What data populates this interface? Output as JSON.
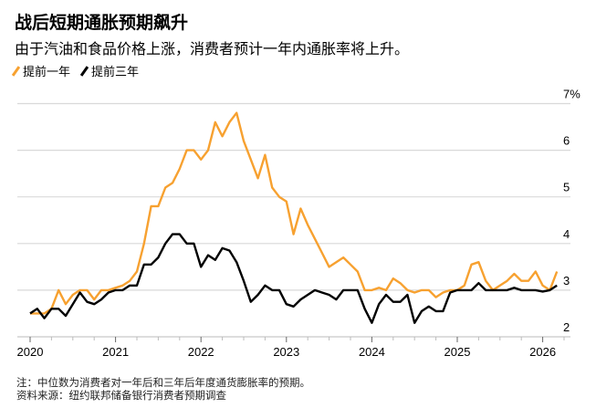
{
  "title": "战后短期通胀预期飙升",
  "subtitle": "由于汽油和食品价格上涨，消费者预计一年内通胀率将上升。",
  "notes": {
    "note": "注：中位数为消费者对一年后和三年后年度通货膨胀率的预期。",
    "source": "资料来源：纽约联邦储备银行消费者预期调查"
  },
  "colors": {
    "one_year": "#F7A130",
    "three_year": "#000000",
    "grid": "#d9d9d9"
  },
  "chart_data": {
    "type": "line",
    "title": "战后短期通胀预期飙升",
    "xlabel": "",
    "ylabel": "",
    "x_start": "2020-01",
    "x_frequency": "monthly",
    "x_ticks": [
      "2020",
      "2021",
      "2022",
      "2023",
      "2024",
      "2025",
      "2026"
    ],
    "y_ticks": [
      "2",
      "3",
      "4",
      "5",
      "6",
      "7%"
    ],
    "ylim": [
      2,
      7
    ],
    "grid": true,
    "legend_position": "top-left",
    "series": [
      {
        "name": "提前一年",
        "color": "#F7A130",
        "values": [
          2.5,
          2.5,
          2.5,
          2.6,
          3.0,
          2.7,
          2.9,
          3.0,
          3.0,
          2.8,
          3.0,
          3.0,
          3.05,
          3.1,
          3.2,
          3.4,
          4.0,
          4.8,
          4.8,
          5.2,
          5.3,
          5.6,
          6.0,
          6.0,
          5.8,
          6.0,
          6.6,
          6.3,
          6.6,
          6.8,
          6.2,
          5.8,
          5.4,
          5.9,
          5.2,
          5.0,
          4.9,
          4.2,
          4.75,
          4.4,
          4.1,
          3.8,
          3.5,
          3.6,
          3.7,
          3.55,
          3.4,
          3.0,
          3.0,
          3.05,
          3.0,
          3.25,
          3.15,
          3.0,
          2.95,
          3.0,
          3.0,
          2.85,
          2.95,
          3.0,
          3.0,
          3.1,
          3.55,
          3.6,
          3.2,
          3.0,
          3.1,
          3.2,
          3.35,
          3.2,
          3.2,
          3.4,
          3.1,
          3.0,
          3.4
        ]
      },
      {
        "name": "提前三年",
        "color": "#000000",
        "values": [
          2.5,
          2.6,
          2.4,
          2.6,
          2.6,
          2.45,
          2.7,
          2.95,
          2.75,
          2.7,
          2.8,
          2.95,
          3.0,
          3.0,
          3.1,
          3.1,
          3.55,
          3.55,
          3.7,
          4.0,
          4.2,
          4.2,
          4.0,
          4.0,
          3.5,
          3.75,
          3.65,
          3.9,
          3.85,
          3.6,
          3.2,
          2.75,
          2.9,
          3.1,
          3.0,
          3.0,
          2.7,
          2.65,
          2.8,
          2.9,
          3.0,
          2.95,
          2.9,
          2.8,
          3.0,
          3.0,
          3.0,
          2.6,
          2.3,
          2.7,
          2.9,
          2.75,
          2.75,
          2.9,
          2.3,
          2.55,
          2.65,
          2.55,
          2.55,
          2.95,
          3.0,
          3.0,
          3.0,
          3.15,
          3.0,
          3.0,
          3.0,
          3.0,
          3.05,
          3.0,
          3.0,
          3.0,
          2.97,
          3.0,
          3.1
        ]
      }
    ]
  }
}
